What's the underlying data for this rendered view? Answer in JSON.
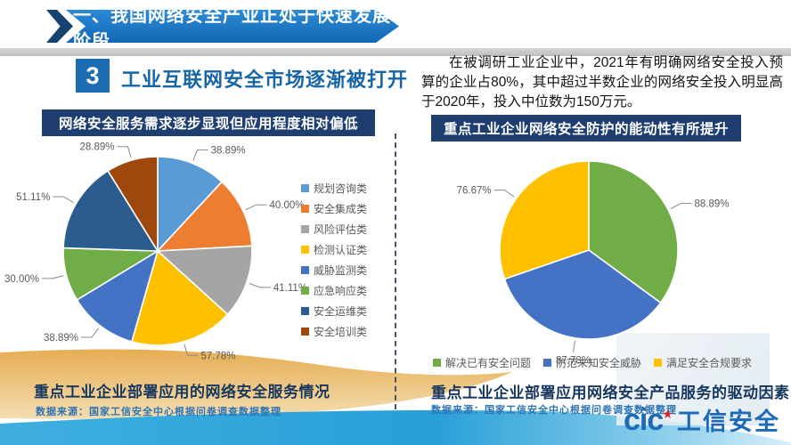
{
  "banner": {
    "title": "一、我国网络安全产业正处于快速发展阶段"
  },
  "section": {
    "number": "3",
    "title": "工业互联网安全市场逐渐被打开"
  },
  "intro": {
    "text": "在被调研工业企业中，2021年有明确网络安全投入预算的企业占80%，其中超过半数企业的网络安全投入明显高于2020年，投入中位数为150万元。"
  },
  "theme_colors": {
    "banner_blue": "#1268b4",
    "header_navy": "#1e3e70",
    "title_blue": "#1565a8",
    "caption_navy": "#17375e",
    "source_blue": "#2e74b5",
    "wave_tan": "#e8b45c",
    "wave_blue": "#2aa0d8",
    "logo_blue": "#1d6bb8",
    "logo_star_red": "#d8262c"
  },
  "chart_data": [
    {
      "type": "pie",
      "title": "网络安全服务需求逐步显现但应用程度相对偏低",
      "legend_position": "right",
      "labels": [
        "规划咨询类",
        "安全集成类",
        "风险评估类",
        "检测认证类",
        "威胁监测类",
        "应急响应类",
        "安全运维类",
        "安全培训类"
      ],
      "values": [
        38.89,
        40.0,
        41.11,
        57.78,
        38.89,
        30.0,
        51.11,
        28.89
      ],
      "display_values": [
        "38.89%",
        "40.00%",
        "41.11%",
        "57.78%",
        "38.89%",
        "30.00%",
        "51.11%",
        "28.89%"
      ],
      "colors": [
        "#5B9BD5",
        "#ED7D31",
        "#A5A5A5",
        "#FFC000",
        "#4472C4",
        "#70AD47",
        "#2B5C8E",
        "#9E480E"
      ],
      "caption": "重点工业企业部署应用的网络安全服务情况",
      "source": "数据来源：国家工信安全中心根据问卷调查数据整理"
    },
    {
      "type": "pie",
      "title": "重点工业企业网络安全防护的能动性有所提升",
      "legend_position": "bottom",
      "labels": [
        "解决已有安全问题",
        "防范未知安全威胁",
        "满足安全合规要求"
      ],
      "values": [
        88.89,
        87.78,
        76.67
      ],
      "display_values": [
        "88.89%",
        "87.78%",
        "76.67%"
      ],
      "colors": [
        "#70AD47",
        "#4472C4",
        "#FFC000"
      ],
      "caption": "重点工业企业部署应用网络安全产品服务的驱动因素",
      "source": "数据来源：国家工信安全中心根据问卷调查数据整理"
    }
  ],
  "logo": {
    "cic": "cic",
    "star": "★",
    "name": "工信安全"
  }
}
